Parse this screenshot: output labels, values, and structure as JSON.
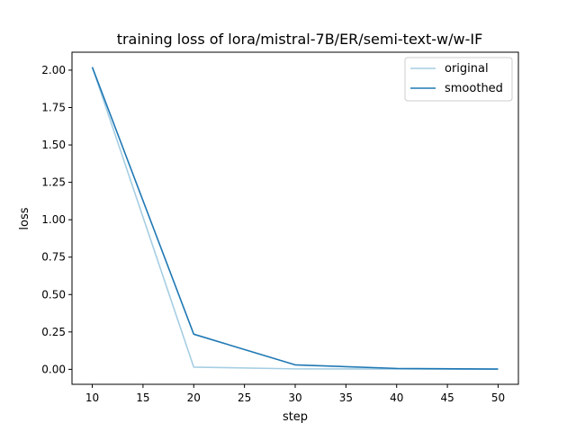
{
  "chart_data": {
    "type": "line",
    "title": "training loss of lora/mistral-7B/ER/semi-text-w/w-IF",
    "xlabel": "step",
    "ylabel": "loss",
    "xlim": [
      8,
      52
    ],
    "ylim": [
      -0.1,
      2.12
    ],
    "xticks": [
      10,
      15,
      20,
      25,
      30,
      35,
      40,
      45,
      50
    ],
    "yticks": [
      0.0,
      0.25,
      0.5,
      0.75,
      1.0,
      1.25,
      1.5,
      1.75,
      2.0
    ],
    "ytick_labels": [
      "0.00",
      "0.25",
      "0.50",
      "0.75",
      "1.00",
      "1.25",
      "1.50",
      "1.75",
      "2.00"
    ],
    "grid": false,
    "legend_position": "top-right",
    "series": [
      {
        "name": "original",
        "color": "#a6cee3",
        "x": [
          10,
          20,
          30,
          40,
          50
        ],
        "y": [
          2.02,
          0.015,
          0.003,
          0.002,
          0.001
        ]
      },
      {
        "name": "smoothed",
        "color": "#1f78b4",
        "x": [
          10,
          20,
          30,
          40,
          50
        ],
        "y": [
          2.02,
          0.235,
          0.03,
          0.006,
          0.002
        ]
      }
    ]
  }
}
